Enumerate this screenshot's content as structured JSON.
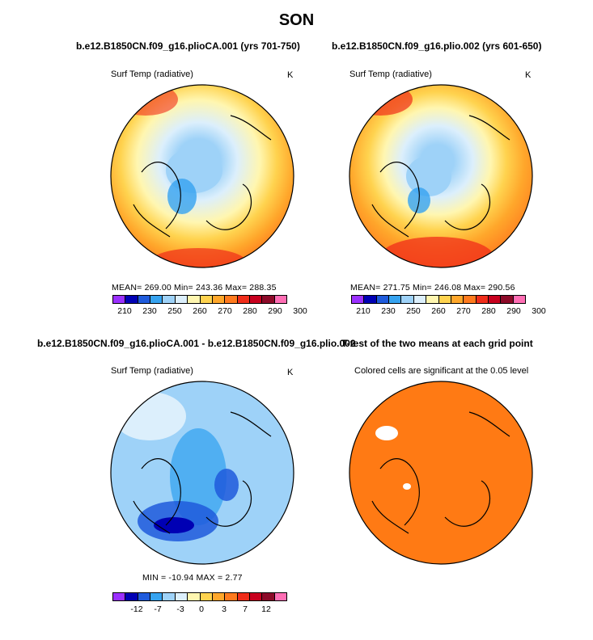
{
  "title": "SON",
  "colors": {
    "label_bar_1": [
      "#9b30ff",
      "#0000b4",
      "#1f5bdc",
      "#36a3f0",
      "#9ed2f8",
      "#dceffc",
      "#fff6b0",
      "#ffd34f",
      "#ffa72b",
      "#ff7a1e",
      "#f02d1a",
      "#c8001e",
      "#8c0a28",
      "#ff6eb4"
    ],
    "label_bar_2": [
      "#9b30ff",
      "#0000b4",
      "#1f5bdc",
      "#36a3f0",
      "#9ed2f8",
      "#dceffc",
      "#fff6b0",
      "#ffd34f",
      "#ffa72b",
      "#ff7a1e",
      "#f02d1a",
      "#c8001e",
      "#8c0a28",
      "#ff6eb4"
    ],
    "label_bar_diff": [
      "#9b30ff",
      "#0000b4",
      "#1f5bdc",
      "#36a3f0",
      "#9ed2f8",
      "#dceffc",
      "#fff6b0",
      "#ffd34f",
      "#ffa72b",
      "#ff7a1e",
      "#f02d1a",
      "#c8001e",
      "#8c0a28",
      "#ff6eb4"
    ],
    "ttest_fill": "#ff7a14",
    "land": "#000000"
  },
  "panels": {
    "p1": {
      "title": "b.e12.B1850CN.f09_g16.plioCA.001 (yrs 701-750)",
      "subtitle": "Surf Temp (radiative)",
      "units": "K",
      "stats": "MEAN=  269.00   Min=  243.36   Max=  288.35",
      "ticks": [
        "210",
        "230",
        "250",
        "260",
        "270",
        "280",
        "290",
        "300"
      ]
    },
    "p2": {
      "title": "b.e12.B1850CN.f09_g16.plio.002 (yrs 601-650)",
      "subtitle": "Surf Temp (radiative)",
      "units": "K",
      "stats": "MEAN=  271.75   Min=  246.08   Max=  290.56",
      "ticks": [
        "210",
        "230",
        "250",
        "260",
        "270",
        "280",
        "290",
        "300"
      ]
    },
    "p3": {
      "title": "b.e12.B1850CN.f09_g16.plioCA.001 - b.e12.B1850CN.f09_g16.plio.002",
      "subtitle": "Surf Temp (radiative)",
      "units": "K",
      "stats": "MIN  =  -10.94  MAX  =     2.77",
      "ticks": [
        "-12",
        "-7",
        "-3",
        "0",
        "3",
        "7",
        "12"
      ]
    },
    "p4": {
      "title": "T-test of the two means at each grid point",
      "subtitle": "Colored cells are significant at the 0.05 level"
    }
  },
  "chart_data": [
    {
      "type": "heatmap",
      "title": "b.e12.B1850CN.f09_g16.plioCA.001 (yrs 701-750)",
      "variable": "Surf Temp (radiative)",
      "units": "K",
      "projection": "polar stereographic (north)",
      "mean": 269.0,
      "min": 243.36,
      "max": 288.35,
      "colorbar_levels": [
        210,
        230,
        250,
        260,
        270,
        280,
        290,
        300
      ]
    },
    {
      "type": "heatmap",
      "title": "b.e12.B1850CN.f09_g16.plio.002 (yrs 601-650)",
      "variable": "Surf Temp (radiative)",
      "units": "K",
      "projection": "polar stereographic (north)",
      "mean": 271.75,
      "min": 246.08,
      "max": 290.56,
      "colorbar_levels": [
        210,
        230,
        250,
        260,
        270,
        280,
        290,
        300
      ]
    },
    {
      "type": "heatmap",
      "title": "b.e12.B1850CN.f09_g16.plioCA.001 - b.e12.B1850CN.f09_g16.plio.002",
      "variable": "Surf Temp (radiative)",
      "units": "K",
      "projection": "polar stereographic (north)",
      "min": -10.94,
      "max": 2.77,
      "colorbar_levels": [
        -12,
        -7,
        -3,
        0,
        3,
        7,
        12
      ]
    },
    {
      "type": "heatmap",
      "title": "T-test of the two means at each grid point",
      "note": "Colored cells are significant at the 0.05 level",
      "significance_level": 0.05
    }
  ]
}
